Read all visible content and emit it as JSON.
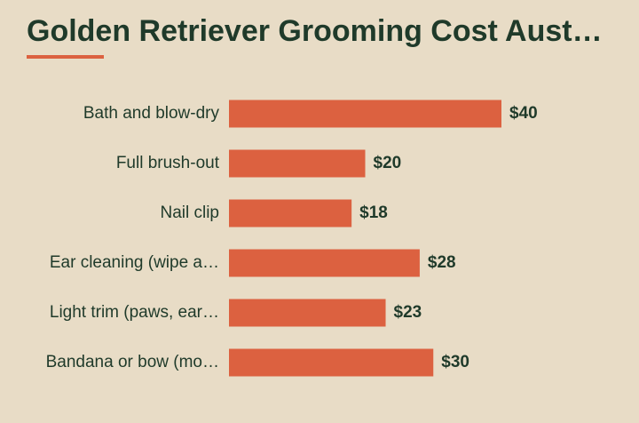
{
  "chart_data": {
    "type": "bar",
    "orientation": "horizontal",
    "title": "Golden Retriever Grooming Cost Aust…",
    "categories": [
      "Bath and blow-dry",
      "Full brush-out",
      "Nail clip",
      "Ear cleaning (wipe a…",
      "Light trim (paws, ear…",
      "Bandana or bow (mo…"
    ],
    "values": [
      40,
      20,
      18,
      28,
      23,
      30
    ],
    "value_labels": [
      "$40",
      "$20",
      "$18",
      "$28",
      "$23",
      "$30"
    ],
    "color": "#dc6140"
  }
}
